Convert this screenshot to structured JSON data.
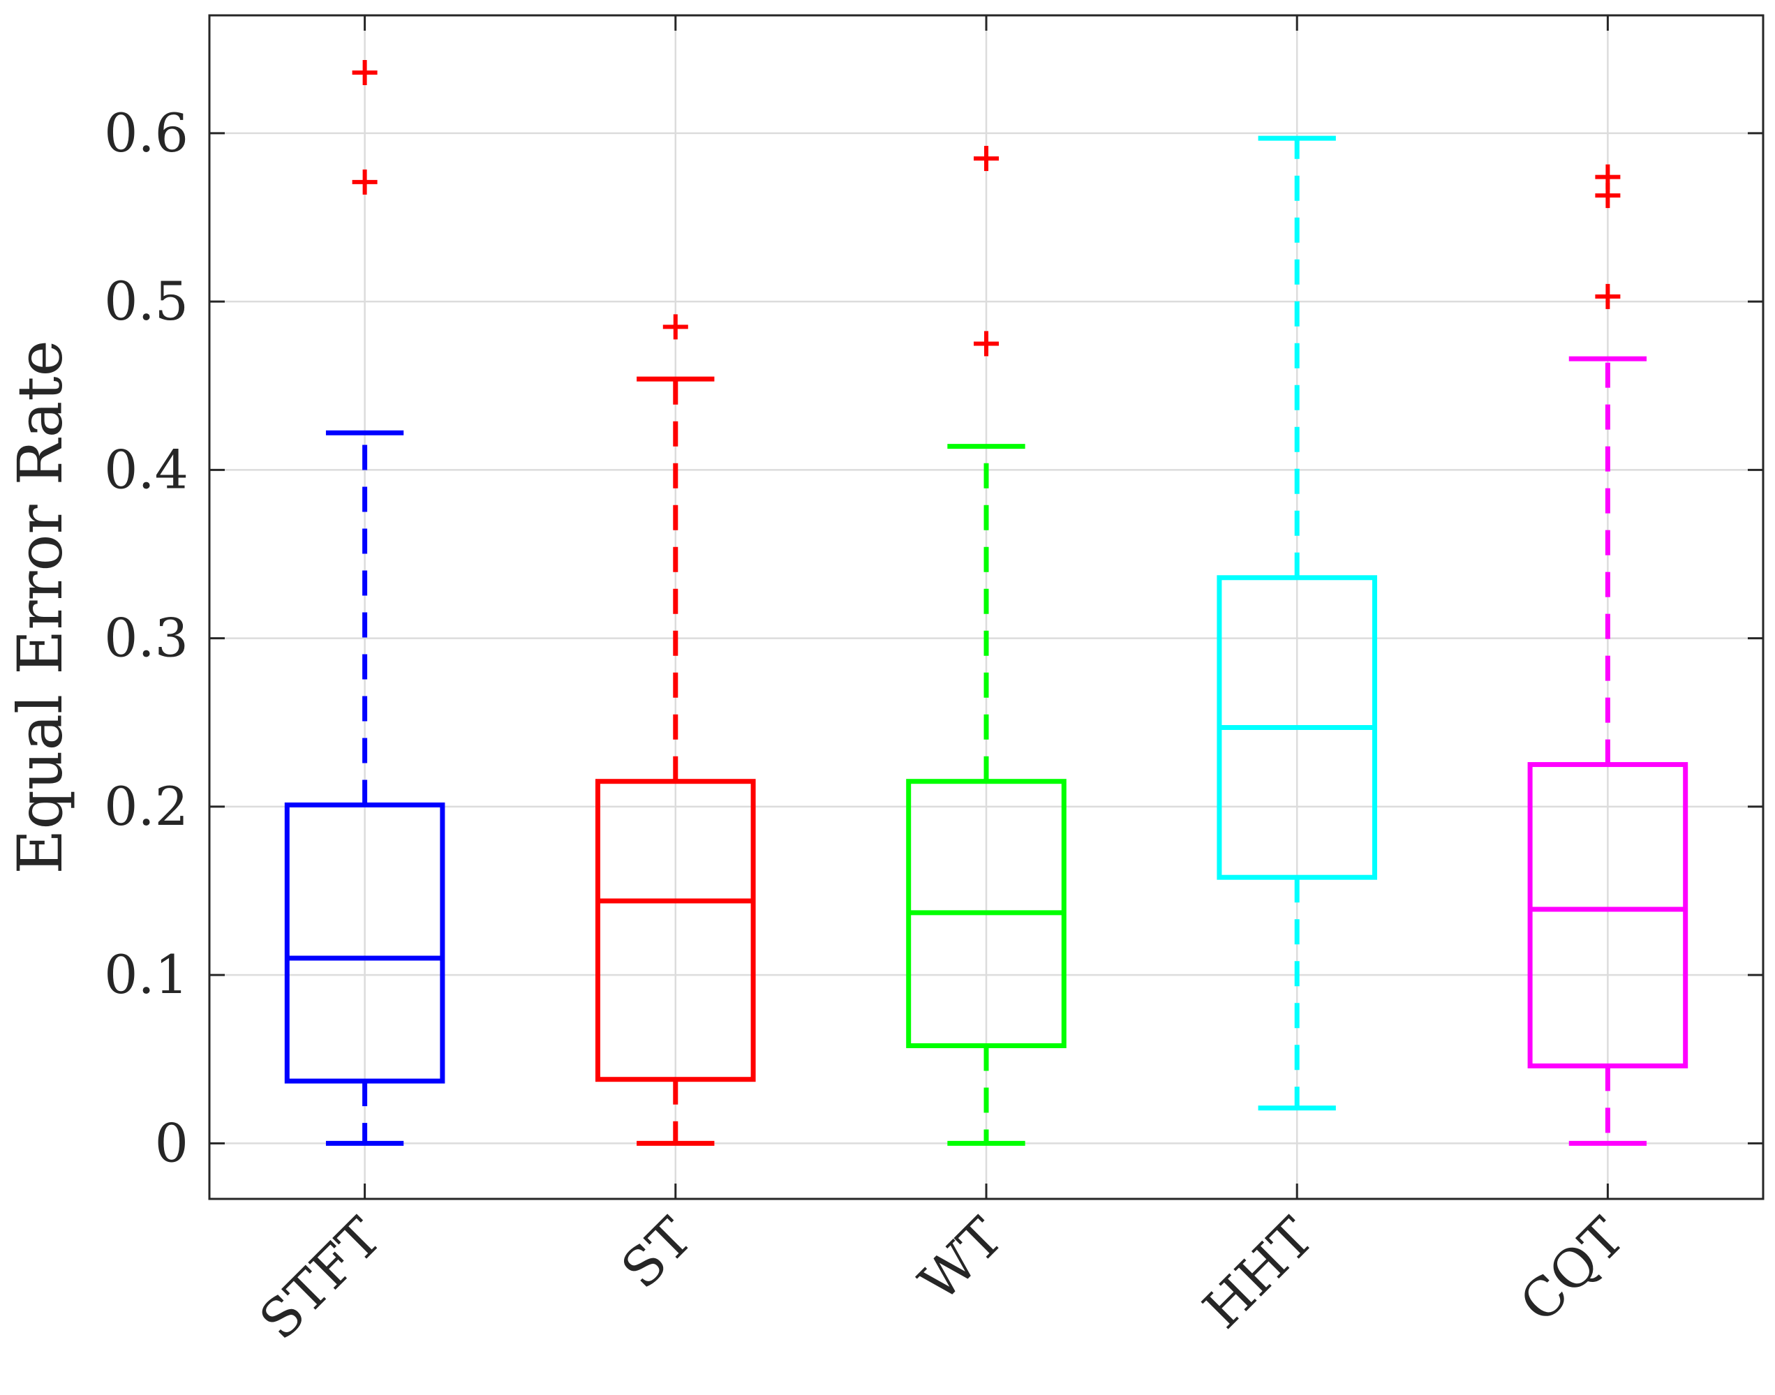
{
  "chart_data": {
    "type": "boxplot",
    "title": "",
    "xlabel": "",
    "ylabel": "Equal Error Rate",
    "ylim": [
      -0.033,
      0.67
    ],
    "yticks": [
      0,
      0.1,
      0.2,
      0.3,
      0.4,
      0.5,
      0.6
    ],
    "ytick_labels": [
      "0",
      "0.1",
      "0.2",
      "0.3",
      "0.4",
      "0.5",
      "0.6"
    ],
    "grid": true,
    "outlier_color": "#ff0000",
    "grid_color": "#dcdcdc",
    "axis_color": "#262626",
    "categories": [
      "STFT",
      "ST",
      "WT",
      "HHT",
      "CQT"
    ],
    "boxes": [
      {
        "name": "STFT",
        "color": "#0000ff",
        "whisker_low": 0.0,
        "q1": 0.037,
        "median": 0.11,
        "q3": 0.201,
        "whisker_high": 0.422,
        "outliers": [
          0.571,
          0.636
        ]
      },
      {
        "name": "ST",
        "color": "#ff0000",
        "whisker_low": 0.0,
        "q1": 0.038,
        "median": 0.144,
        "q3": 0.215,
        "whisker_high": 0.454,
        "outliers": [
          0.485
        ]
      },
      {
        "name": "WT",
        "color": "#00ff00",
        "whisker_low": 0.0,
        "q1": 0.058,
        "median": 0.137,
        "q3": 0.215,
        "whisker_high": 0.414,
        "outliers": [
          0.475,
          0.585
        ]
      },
      {
        "name": "HHT",
        "color": "#00ffff",
        "whisker_low": 0.021,
        "q1": 0.158,
        "median": 0.247,
        "q3": 0.336,
        "whisker_high": 0.597,
        "outliers": []
      },
      {
        "name": "CQT",
        "color": "#ff00ff",
        "whisker_low": 0.0,
        "q1": 0.046,
        "median": 0.139,
        "q3": 0.225,
        "whisker_high": 0.466,
        "outliers": [
          0.503,
          0.563,
          0.574
        ]
      }
    ]
  }
}
